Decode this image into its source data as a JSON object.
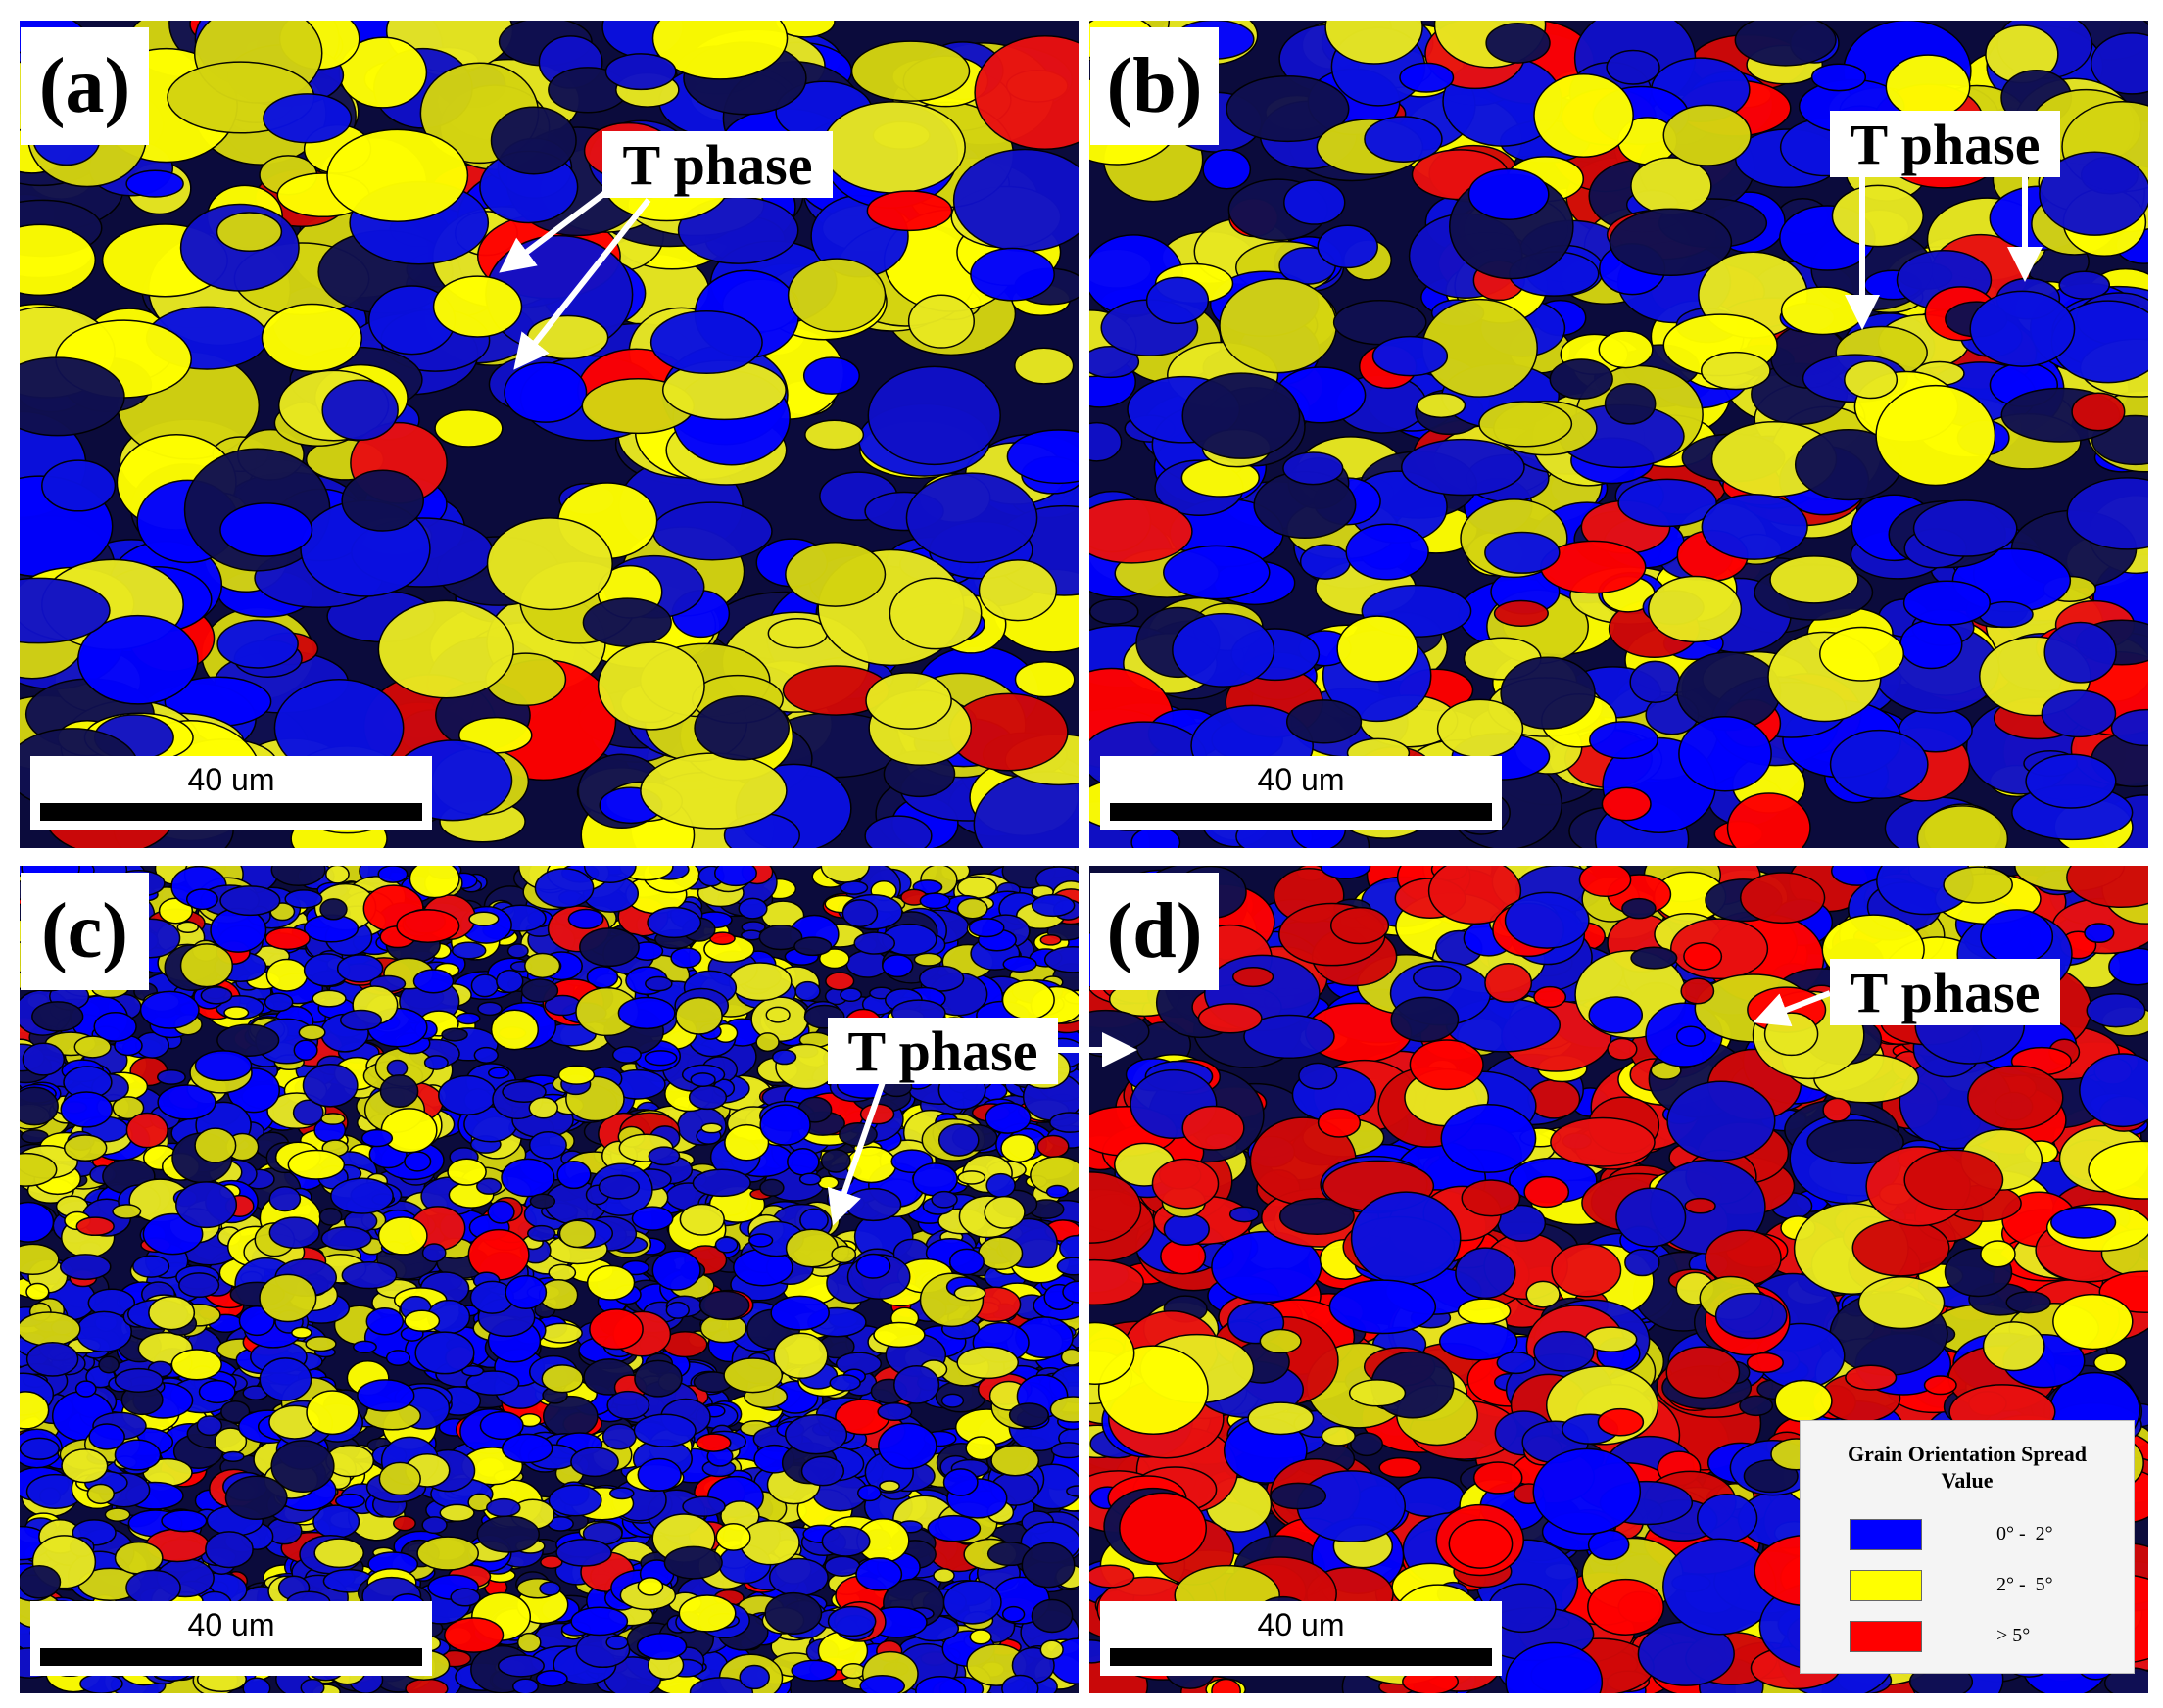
{
  "panels": [
    {
      "label": "(a)",
      "annotation": "T phase",
      "scale_bar": "40 um"
    },
    {
      "label": "(b)",
      "annotation": "T phase",
      "scale_bar": "40 um"
    },
    {
      "label": "(c)",
      "annotation": "T phase",
      "scale_bar": "40 um"
    },
    {
      "label": "(d)",
      "annotation": "T phase",
      "scale_bar": "40 um"
    }
  ],
  "legend": {
    "title": "Grain Orientation Spread Value",
    "items": [
      {
        "label": "0° -  2°",
        "color": "#0000ff"
      },
      {
        "label": "2° -  5°",
        "color": "#ffff00"
      },
      {
        "label": "> 5°",
        "color": "#ff0000"
      }
    ]
  }
}
